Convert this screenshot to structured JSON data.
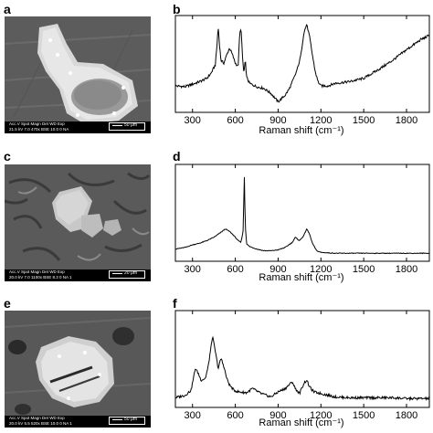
{
  "panels": [
    {
      "label": "a",
      "bar": {
        "line1": "Acc.V  Spot Magn     Det  WD  Exp",
        "line2": "21.5 kV 7.0   470x      BSE 10.0   0       NA",
        "scale": "50 μm"
      }
    },
    {
      "label": "c",
      "bar": {
        "line1": "Acc.V  Spot Magn     Det  WD  Exp",
        "line2": "20.0 kV 7.0  1100x     BSE 8.3   0       NA 1",
        "scale": "20 μm"
      }
    },
    {
      "label": "e",
      "bar": {
        "line1": "Acc.V  Spot Magn     Det  WD  Exp",
        "line2": "20.0 kV 5.5   520x      BSE 10.0   0       NA 1",
        "scale": "50 μm"
      }
    }
  ],
  "chart_data": [
    {
      "panel": "b",
      "type": "line",
      "xlabel": "Raman shift (cm⁻¹)",
      "xticks": [
        "300",
        "600",
        "900",
        "1200",
        "1500",
        "1800"
      ],
      "xlim": [
        180,
        1960
      ],
      "ylim": [
        0,
        100
      ],
      "x": [
        180,
        250,
        300,
        350,
        400,
        430,
        460,
        470,
        480,
        490,
        500,
        520,
        540,
        560,
        580,
        600,
        620,
        630,
        640,
        650,
        660,
        670,
        680,
        700,
        750,
        800,
        850,
        900,
        950,
        980,
        1000,
        1020,
        1040,
        1060,
        1080,
        1100,
        1120,
        1140,
        1160,
        1180,
        1200,
        1250,
        1300,
        1400,
        1500,
        1600,
        1700,
        1800,
        1900,
        1960
      ],
      "values": [
        25,
        24,
        27,
        30,
        34,
        40,
        50,
        70,
        95,
        72,
        55,
        52,
        62,
        70,
        62,
        52,
        48,
        85,
        95,
        60,
        40,
        55,
        35,
        28,
        24,
        22,
        16,
        6,
        14,
        22,
        30,
        38,
        48,
        62,
        88,
        98,
        84,
        62,
        42,
        30,
        25,
        25,
        28,
        30,
        34,
        44,
        55,
        68,
        80,
        85
      ]
    },
    {
      "panel": "d",
      "type": "line",
      "xlabel": "Raman shift (cm⁻¹)",
      "xticks": [
        "300",
        "600",
        "900",
        "1200",
        "1500",
        "1800"
      ],
      "xlim": [
        180,
        1960
      ],
      "ylim": [
        0,
        100
      ],
      "x": [
        180,
        250,
        300,
        350,
        400,
        450,
        500,
        530,
        560,
        590,
        620,
        640,
        655,
        663,
        670,
        680,
        700,
        750,
        800,
        850,
        900,
        950,
        1000,
        1020,
        1050,
        1080,
        1100,
        1120,
        1140,
        1170,
        1200,
        1300,
        1400,
        1500,
        1600,
        1700,
        1800,
        1900,
        1960
      ],
      "values": [
        8,
        10,
        13,
        15,
        18,
        22,
        28,
        32,
        29,
        24,
        18,
        16,
        30,
        95,
        35,
        14,
        11,
        8,
        6,
        6,
        7,
        10,
        16,
        22,
        18,
        24,
        32,
        26,
        15,
        6,
        4,
        3,
        3,
        3,
        3,
        3,
        3,
        3,
        3
      ]
    },
    {
      "panel": "f",
      "type": "line",
      "xlabel": "Raman shift (cm⁻¹)",
      "xticks": [
        "300",
        "600",
        "900",
        "1200",
        "1500",
        "1800"
      ],
      "xlim": [
        180,
        1960
      ],
      "ylim": [
        0,
        100
      ],
      "x": [
        180,
        250,
        290,
        320,
        340,
        360,
        390,
        410,
        440,
        460,
        480,
        500,
        520,
        540,
        560,
        590,
        620,
        680,
        720,
        780,
        850,
        900,
        950,
        1000,
        1020,
        1050,
        1080,
        1100,
        1120,
        1150,
        1200,
        1250,
        1300,
        1400,
        1500,
        1600,
        1700,
        1800,
        1900,
        1960
      ],
      "values": [
        5,
        8,
        14,
        40,
        34,
        26,
        28,
        42,
        78,
        60,
        40,
        52,
        42,
        28,
        20,
        14,
        12,
        11,
        16,
        10,
        6,
        12,
        16,
        24,
        16,
        10,
        22,
        26,
        18,
        12,
        10,
        8,
        6,
        5,
        5,
        5,
        5,
        4,
        4,
        4
      ]
    }
  ]
}
